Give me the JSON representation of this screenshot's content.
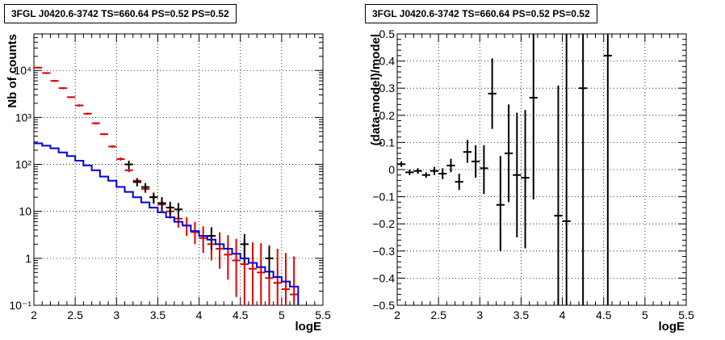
{
  "panels": [
    {
      "title": "3FGL J0420.6-3742 TS=660.64 PS=0.52 PS=0.52",
      "xlabel": "logE",
      "ylabel": "Nb of counts",
      "xlim": [
        2,
        5.5
      ],
      "ylim": [
        0.1,
        60000
      ],
      "yscale": "log",
      "xticks": [
        "2",
        "2.5",
        "3",
        "3.5",
        "4",
        "4.5",
        "5",
        "5.5"
      ],
      "yticks": [
        "10⁻¹",
        "1",
        "10",
        "10²",
        "10³",
        "10⁴"
      ],
      "grid": true
    },
    {
      "title": "3FGL J0420.6-3742 TS=660.64 PS=0.52 PS=0.52",
      "xlabel": "logE",
      "ylabel": "(data-model)/model",
      "xlim": [
        2,
        5.5
      ],
      "ylim": [
        -0.5,
        0.5
      ],
      "yscale": "linear",
      "xticks": [
        "2",
        "2.5",
        "3",
        "3.5",
        "4",
        "4.5",
        "5",
        "5.5"
      ],
      "yticks": [
        "−0.5",
        "−0.4",
        "−0.3",
        "−0.2",
        "−0.1",
        "0",
        "0.1",
        "0.2",
        "0.3",
        "0.4",
        "0.5"
      ],
      "grid": true
    }
  ],
  "chart_data": [
    {
      "type": "scatter",
      "title": "3FGL J0420.6-3742 TS=660.64 PS=0.52 PS=0.52",
      "xlabel": "logE",
      "ylabel": "Nb of counts",
      "xlim": [
        2,
        5.5
      ],
      "ylim": [
        0.1,
        60000
      ],
      "log_y": true,
      "grid": true,
      "series": [
        {
          "color": "#e00000",
          "kind": "points_with_errors",
          "x": [
            2.05,
            2.15,
            2.25,
            2.35,
            2.45,
            2.55,
            2.65,
            2.75,
            2.85,
            2.95,
            3.05,
            3.15,
            3.25,
            3.35,
            3.45,
            3.55,
            3.65,
            3.75,
            3.85,
            3.95,
            4.05,
            4.15,
            4.25,
            4.35,
            4.45,
            4.55,
            4.65,
            4.75,
            4.85,
            4.95,
            5.05,
            5.15
          ],
          "y": [
            11500,
            8800,
            6000,
            4200,
            2700,
            1800,
            1200,
            750,
            440,
            240,
            130,
            75,
            45,
            30,
            20,
            14,
            10,
            7,
            5,
            3.6,
            2.7,
            2,
            1.6,
            1.2,
            0.9,
            0.75,
            0.6,
            0.5,
            0.38,
            0.3,
            0.22,
            0.17
          ],
          "y_low": [
            11000,
            8400,
            5700,
            4000,
            2600,
            1700,
            1140,
            710,
            420,
            225,
            120,
            68,
            40,
            25,
            16,
            10.5,
            7,
            4.5,
            3,
            2,
            1.3,
            0.9,
            0.6,
            0.35,
            0.15,
            0.1,
            0.1,
            0.1,
            0.1,
            0.1,
            0.1,
            0.1
          ],
          "y_high": [
            12000,
            9200,
            6300,
            4400,
            2800,
            1900,
            1260,
            790,
            460,
            255,
            140,
            82,
            51,
            35,
            25,
            18,
            14,
            10,
            7.5,
            6,
            4.8,
            4.1,
            3.6,
            3.1,
            2.6,
            2.5,
            2.2,
            2.1,
            1.9,
            1.6,
            1.3,
            1.1
          ]
        },
        {
          "color": "#000000",
          "kind": "points_with_errors",
          "x": [
            3.15,
            3.25,
            3.35,
            3.45,
            3.55,
            3.65,
            3.75,
            4.15,
            4.55,
            4.85
          ],
          "y": [
            100,
            42,
            33,
            20,
            15,
            12,
            11,
            3,
            2,
            1
          ],
          "y_low": [
            80,
            34,
            25,
            14.5,
            10,
            8,
            7,
            1.5,
            0.8,
            0.4
          ],
          "y_high": [
            120,
            50,
            40,
            25,
            20,
            16,
            15,
            4.6,
            3.3,
            1.8
          ]
        },
        {
          "color": "#0000dd",
          "kind": "step",
          "x_edges": [
            2.0,
            2.1,
            2.2,
            2.3,
            2.4,
            2.5,
            2.6,
            2.7,
            2.8,
            2.9,
            3.0,
            3.1,
            3.2,
            3.3,
            3.4,
            3.5,
            3.6,
            3.7,
            3.8,
            3.9,
            4.0,
            4.1,
            4.2,
            4.3,
            4.4,
            4.5,
            4.6,
            4.7,
            4.8,
            4.9,
            5.0,
            5.1,
            5.2
          ],
          "y": [
            280,
            250,
            220,
            180,
            150,
            120,
            95,
            75,
            55,
            45,
            33,
            26,
            20,
            15.5,
            12,
            9.5,
            7.5,
            6,
            5,
            3.8,
            3,
            2.5,
            2,
            1.6,
            1.25,
            1,
            0.8,
            0.65,
            0.52,
            0.4,
            0.32,
            0.25,
            0.1
          ]
        }
      ]
    },
    {
      "type": "scatter",
      "title": "3FGL J0420.6-3742 TS=660.64 PS=0.52 PS=0.52",
      "xlabel": "logE",
      "ylabel": "(data-model)/model",
      "xlim": [
        2,
        5.5
      ],
      "ylim": [
        -0.5,
        0.5
      ],
      "grid": true,
      "series": [
        {
          "color": "#000000",
          "kind": "points_with_errors",
          "x": [
            2.05,
            2.15,
            2.25,
            2.35,
            2.45,
            2.55,
            2.65,
            2.75,
            2.85,
            2.95,
            3.05,
            3.15,
            3.25,
            3.35,
            3.45,
            3.55,
            3.65,
            3.95,
            4.05,
            4.25,
            4.55
          ],
          "y": [
            0.02,
            -0.01,
            -0.005,
            -0.02,
            -0.005,
            -0.015,
            0.015,
            -0.045,
            0.065,
            0.03,
            0.005,
            0.28,
            -0.13,
            0.06,
            -0.02,
            -0.03,
            0.265,
            -0.17,
            -0.19,
            0.3,
            0.42
          ],
          "y_low": [
            0.01,
            -0.02,
            -0.015,
            -0.03,
            -0.02,
            -0.035,
            -0.01,
            -0.075,
            0.025,
            -0.03,
            -0.09,
            0.15,
            -0.3,
            -0.12,
            -0.25,
            -0.29,
            -0.11,
            -0.5,
            -0.5,
            -0.5,
            -0.5
          ],
          "y_high": [
            0.03,
            0.0,
            0.005,
            -0.01,
            0.01,
            0.005,
            0.04,
            -0.015,
            0.11,
            0.09,
            0.09,
            0.41,
            0.05,
            0.24,
            0.21,
            0.22,
            0.5,
            0.31,
            0.5,
            0.5,
            0.5
          ]
        }
      ]
    }
  ]
}
